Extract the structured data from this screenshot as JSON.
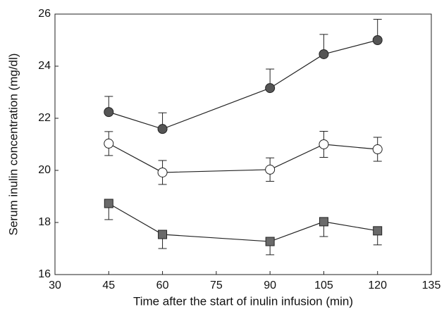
{
  "chart_data": {
    "type": "line",
    "x_label": "Time after the start of inulin infusion (min)",
    "y_label": "Serum inulin concentration (mg/dl)",
    "x": [
      45,
      60,
      90,
      105,
      120
    ],
    "xlim": [
      30,
      135
    ],
    "xticks": [
      30,
      45,
      60,
      75,
      90,
      105,
      120,
      135
    ],
    "ylim": [
      16,
      26
    ],
    "yticks": [
      16,
      18,
      20,
      22,
      24,
      26
    ],
    "grid": false,
    "series": [
      {
        "marker": "circle",
        "color": "#555555",
        "values": [
          22.24,
          21.59,
          23.16,
          24.46,
          25.0
        ],
        "errors": [
          0.6,
          0.62,
          0.73,
          0.76,
          0.8
        ],
        "error_side": "up"
      },
      {
        "marker": "circle",
        "color": "#ffffff",
        "values": [
          21.03,
          19.92,
          20.03,
          21.0,
          20.81
        ],
        "errors": [
          0.46,
          0.46,
          0.45,
          0.5,
          0.46
        ],
        "error_side": "both"
      },
      {
        "marker": "square",
        "color": "#6a6a6a",
        "values": [
          18.73,
          17.54,
          17.27,
          18.03,
          17.68
        ],
        "errors": [
          0.62,
          0.54,
          0.51,
          0.57,
          0.54
        ],
        "error_side": "down"
      }
    ]
  }
}
